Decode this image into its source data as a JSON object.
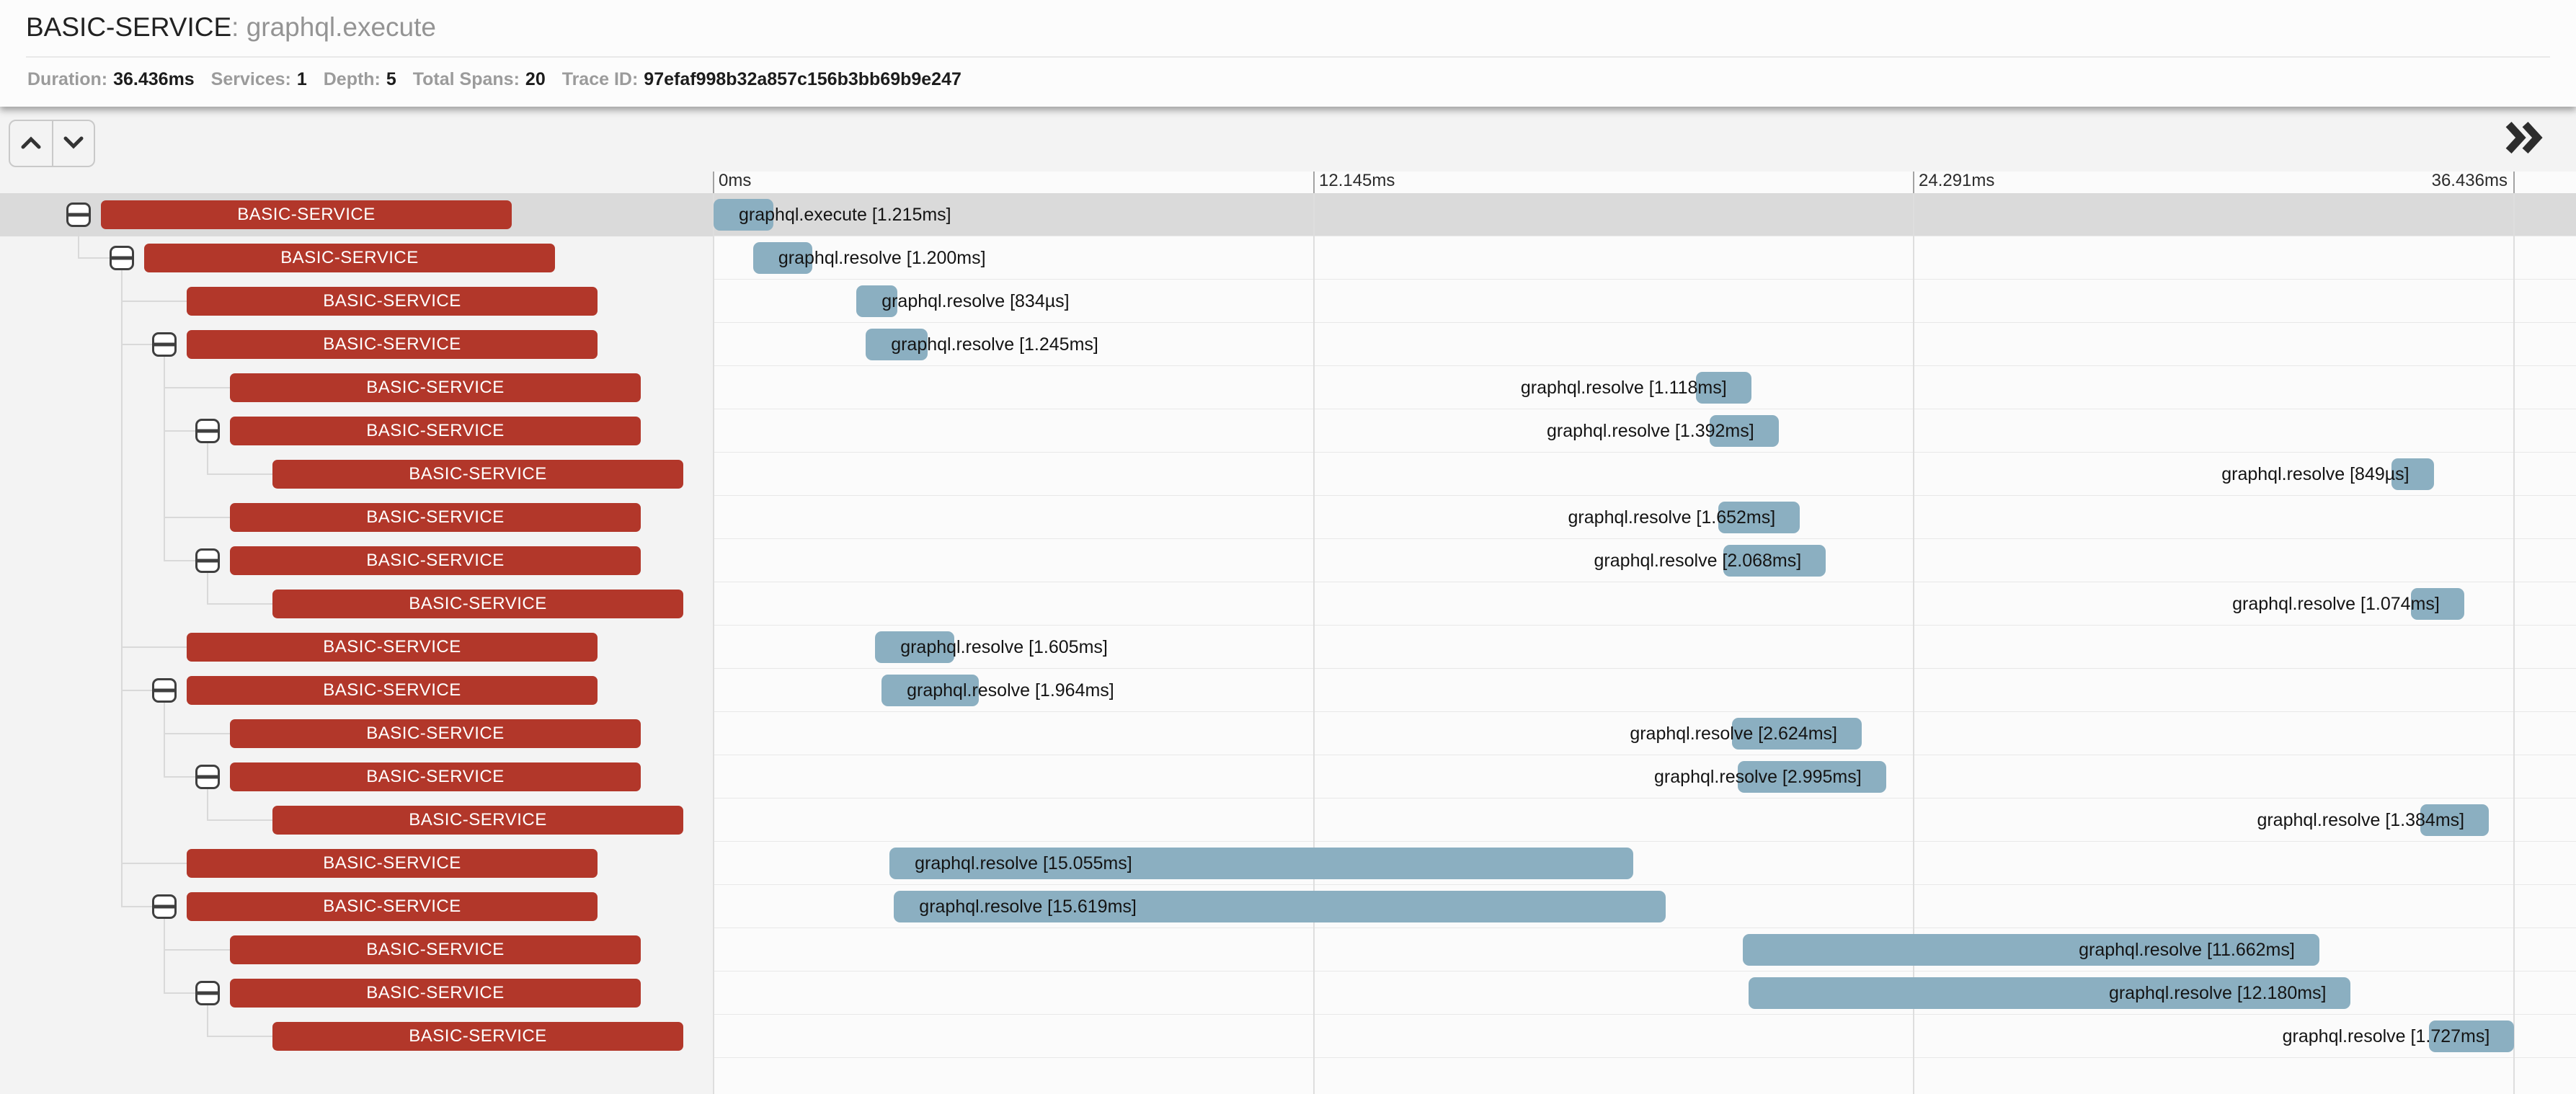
{
  "header": {
    "service_name": "BASIC-SERVICE",
    "separator": ": ",
    "span_name": "graphql.execute",
    "stats": [
      {
        "label": "Duration:",
        "value": "36.436ms"
      },
      {
        "label": "Services:",
        "value": "1"
      },
      {
        "label": "Depth:",
        "value": "5"
      },
      {
        "label": "Total Spans:",
        "value": "20"
      },
      {
        "label": "Trace ID:",
        "value": "97efaf998b32a857c156b3bb69b9e247"
      }
    ]
  },
  "toolbar": {
    "prev_icon": "chevron-up",
    "next_icon": "chevron-down",
    "expand_icon": "double-chevron-right"
  },
  "timeline": {
    "total_ms": 36.436,
    "ticks": [
      {
        "label": "0ms",
        "ms": 0
      },
      {
        "label": "12.145ms",
        "ms": 12.145
      },
      {
        "label": "24.291ms",
        "ms": 24.291
      },
      {
        "label": "36.436ms",
        "ms": 36.436
      }
    ]
  },
  "spans": [
    {
      "service": "BASIC-SERVICE",
      "label": "graphql.execute [1.215ms]",
      "depth": 0,
      "expandable": true,
      "selected": true,
      "start_ms": 0.0,
      "duration_ms": 1.215,
      "label_side": "left"
    },
    {
      "service": "BASIC-SERVICE",
      "label": "graphql.resolve [1.200ms]",
      "depth": 1,
      "expandable": true,
      "selected": false,
      "start_ms": 0.8,
      "duration_ms": 1.2,
      "label_side": "left"
    },
    {
      "service": "BASIC-SERVICE",
      "label": "graphql.resolve [834µs]",
      "depth": 2,
      "expandable": false,
      "selected": false,
      "start_ms": 2.89,
      "duration_ms": 0.834,
      "label_side": "left"
    },
    {
      "service": "BASIC-SERVICE",
      "label": "graphql.resolve [1.245ms]",
      "depth": 2,
      "expandable": true,
      "selected": false,
      "start_ms": 3.08,
      "duration_ms": 1.245,
      "label_side": "left"
    },
    {
      "service": "BASIC-SERVICE",
      "label": "graphql.resolve [1.118ms]",
      "depth": 3,
      "expandable": false,
      "selected": false,
      "start_ms": 19.88,
      "duration_ms": 1.118,
      "label_side": "right"
    },
    {
      "service": "BASIC-SERVICE",
      "label": "graphql.resolve [1.392ms]",
      "depth": 3,
      "expandable": true,
      "selected": false,
      "start_ms": 20.16,
      "duration_ms": 1.392,
      "label_side": "right"
    },
    {
      "service": "BASIC-SERVICE",
      "label": "graphql.resolve [849µs]",
      "depth": 4,
      "expandable": false,
      "selected": false,
      "start_ms": 33.96,
      "duration_ms": 0.849,
      "label_side": "right"
    },
    {
      "service": "BASIC-SERVICE",
      "label": "graphql.resolve [1.652ms]",
      "depth": 3,
      "expandable": false,
      "selected": false,
      "start_ms": 20.33,
      "duration_ms": 1.652,
      "label_side": "right"
    },
    {
      "service": "BASIC-SERVICE",
      "label": "graphql.resolve [2.068ms]",
      "depth": 3,
      "expandable": true,
      "selected": false,
      "start_ms": 20.44,
      "duration_ms": 2.068,
      "label_side": "right"
    },
    {
      "service": "BASIC-SERVICE",
      "label": "graphql.resolve [1.074ms]",
      "depth": 4,
      "expandable": false,
      "selected": false,
      "start_ms": 34.35,
      "duration_ms": 1.074,
      "label_side": "right"
    },
    {
      "service": "BASIC-SERVICE",
      "label": "graphql.resolve [1.605ms]",
      "depth": 2,
      "expandable": false,
      "selected": false,
      "start_ms": 3.27,
      "duration_ms": 1.605,
      "label_side": "left"
    },
    {
      "service": "BASIC-SERVICE",
      "label": "graphql.resolve [1.964ms]",
      "depth": 2,
      "expandable": true,
      "selected": false,
      "start_ms": 3.4,
      "duration_ms": 1.964,
      "label_side": "left"
    },
    {
      "service": "BASIC-SERVICE",
      "label": "graphql.resolve [2.624ms]",
      "depth": 3,
      "expandable": false,
      "selected": false,
      "start_ms": 20.61,
      "duration_ms": 2.624,
      "label_side": "right"
    },
    {
      "service": "BASIC-SERVICE",
      "label": "graphql.resolve [2.995ms]",
      "depth": 3,
      "expandable": true,
      "selected": false,
      "start_ms": 20.73,
      "duration_ms": 2.995,
      "label_side": "right"
    },
    {
      "service": "BASIC-SERVICE",
      "label": "graphql.resolve [1.384ms]",
      "depth": 4,
      "expandable": false,
      "selected": false,
      "start_ms": 34.54,
      "duration_ms": 1.384,
      "label_side": "right"
    },
    {
      "service": "BASIC-SERVICE",
      "label": "graphql.resolve [15.055ms]",
      "depth": 2,
      "expandable": false,
      "selected": false,
      "start_ms": 3.56,
      "duration_ms": 15.055,
      "label_side": "left"
    },
    {
      "service": "BASIC-SERVICE",
      "label": "graphql.resolve [15.619ms]",
      "depth": 2,
      "expandable": true,
      "selected": false,
      "start_ms": 3.65,
      "duration_ms": 15.619,
      "label_side": "left"
    },
    {
      "service": "BASIC-SERVICE",
      "label": "graphql.resolve [11.662ms]",
      "depth": 3,
      "expandable": false,
      "selected": false,
      "start_ms": 20.83,
      "duration_ms": 11.662,
      "label_side": "right"
    },
    {
      "service": "BASIC-SERVICE",
      "label": "graphql.resolve [12.180ms]",
      "depth": 3,
      "expandable": true,
      "selected": false,
      "start_ms": 20.95,
      "duration_ms": 12.18,
      "label_side": "right"
    },
    {
      "service": "BASIC-SERVICE",
      "label": "graphql.resolve [1.727ms]",
      "depth": 4,
      "expandable": false,
      "selected": false,
      "start_ms": 34.71,
      "duration_ms": 1.727,
      "label_side": "right"
    }
  ],
  "colors": {
    "service_bar": "#b2372a",
    "span_bar": "#8bafc1",
    "selected_row": "#dadada",
    "connector": "#d9d9d9"
  }
}
